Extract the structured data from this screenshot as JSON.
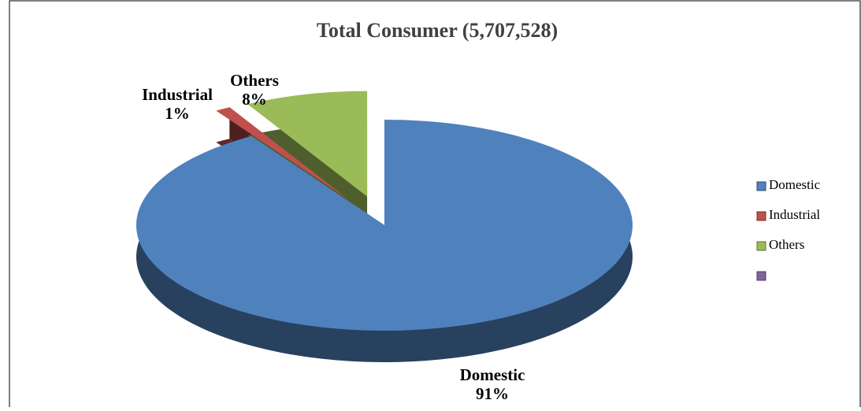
{
  "chart_data": {
    "type": "pie",
    "title": "Total Consumer (5,707,528)",
    "categories": [
      "Domestic",
      "Industrial",
      "Others",
      null
    ],
    "values": [
      91,
      1,
      8,
      null
    ],
    "value_labels": [
      "91%",
      "1%",
      "8%",
      null
    ],
    "colors": [
      "#4f81bd",
      "#c0504d",
      "#9bbb59",
      "#8064a2"
    ],
    "legend": "right"
  }
}
